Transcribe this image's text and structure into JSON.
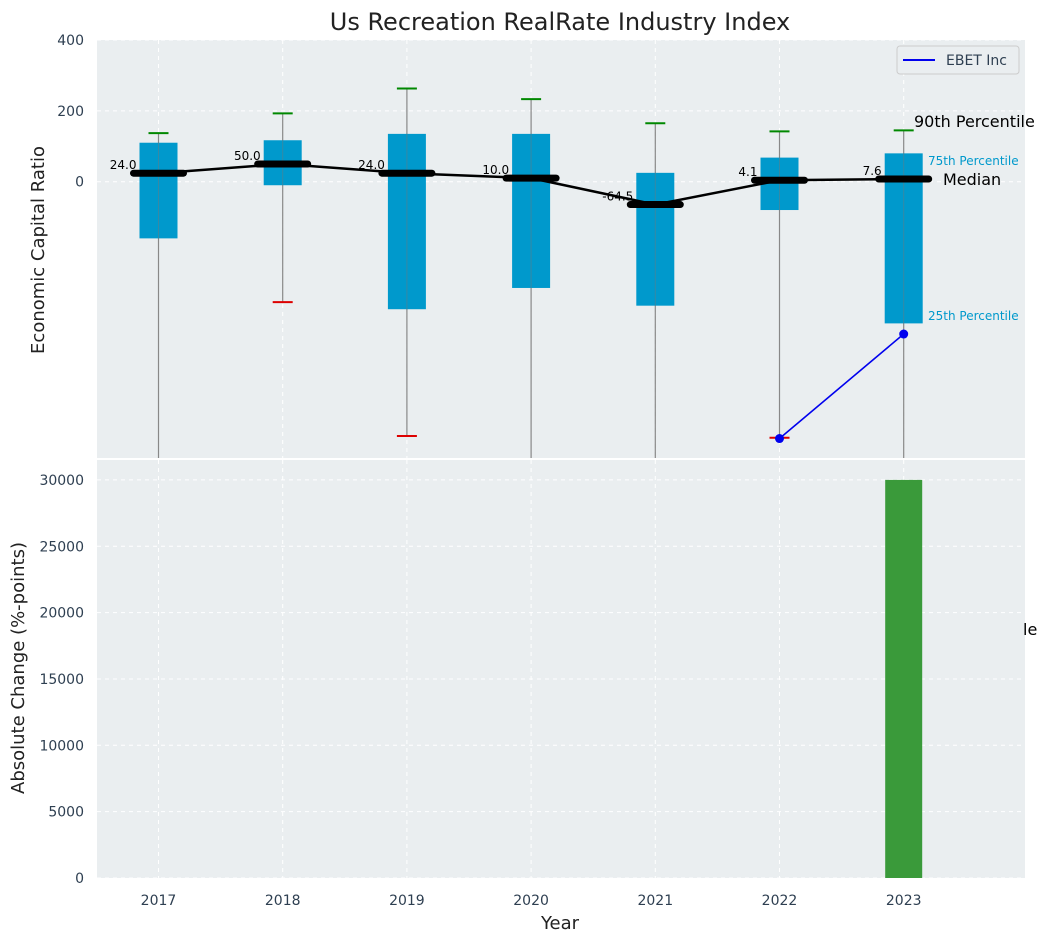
{
  "chart_data": [
    {
      "type": "box",
      "title": "Us Recreation RealRate Industry Index",
      "ylabel": "Economic Capital Ratio",
      "ylim": [
        -780,
        400
      ],
      "yticks": [
        400,
        200,
        0
      ],
      "x": [
        2017,
        2018,
        2019,
        2020,
        2021,
        2022,
        2023
      ],
      "boxes": [
        {
          "year": 2017,
          "p10": -780,
          "p25": -160,
          "median": 24.0,
          "p75": 110,
          "p90": 137
        },
        {
          "year": 2018,
          "p10": -340,
          "p25": -10,
          "median": 50.0,
          "p75": 117,
          "p90": 193
        },
        {
          "year": 2019,
          "p10": -718,
          "p25": -360,
          "median": 24.0,
          "p75": 135,
          "p90": 263
        },
        {
          "year": 2020,
          "p10": -780,
          "p25": -300,
          "median": 10.0,
          "p75": 135,
          "p90": 233
        },
        {
          "year": 2021,
          "p10": -780,
          "p25": -350,
          "median": -64.5,
          "p75": 25,
          "p90": 165
        },
        {
          "year": 2022,
          "p10": -723,
          "p25": -80,
          "median": 4.1,
          "p75": 68,
          "p90": 142
        },
        {
          "year": 2023,
          "p10": -780,
          "p25": -400,
          "median": 7.6,
          "p75": 80,
          "p90": 145
        }
      ],
      "median_labels": [
        "24.0",
        "50.0",
        "24.0",
        "10.0",
        "-64.5",
        "4.1",
        "7.6"
      ],
      "series": [
        {
          "name": "EBET Inc",
          "x": [
            2022,
            2023
          ],
          "values": [
            -725,
            -430
          ],
          "color": "#0000ee"
        }
      ],
      "annotations": {
        "p90": "90th Percentile",
        "p75": "75th Percentile",
        "median": "Median",
        "p25": "25th Percentile"
      },
      "legend": "top-right",
      "grid": true
    },
    {
      "type": "bar",
      "xlabel": "Year",
      "ylabel": "Absolute Change (%-points)",
      "categories": [
        "2017",
        "2018",
        "2019",
        "2020",
        "2021",
        "2022",
        "2023"
      ],
      "values": [
        0,
        0,
        0,
        0,
        0,
        0,
        30000
      ],
      "ylim": [
        0,
        31500
      ],
      "yticks": [
        0,
        5000,
        10000,
        15000,
        20000,
        25000,
        30000
      ],
      "grid": true,
      "clipped_annotation": "le"
    }
  ],
  "colors": {
    "plot_bg": "#eaeef0",
    "grid": "#ffffff",
    "box": "#0099cc",
    "whisker": "#888888",
    "cap_top": "#008800",
    "cap_bottom": "#dd0000",
    "median": "#000000",
    "bar": "#3a9a3a",
    "company": "#0000ee"
  }
}
